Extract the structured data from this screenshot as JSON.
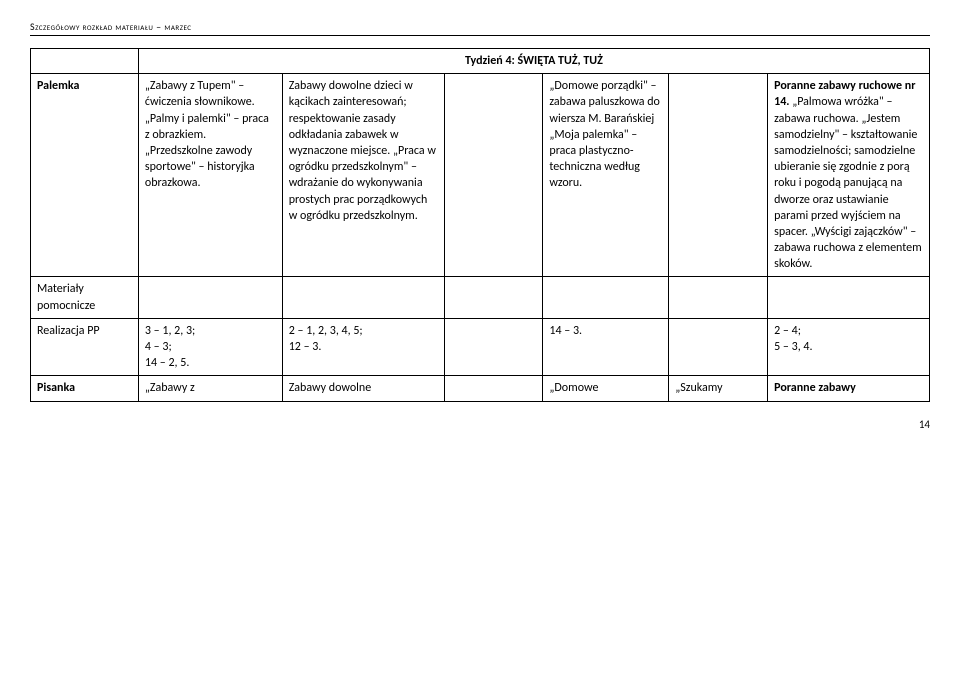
{
  "header": "Szczegółowy rozkład materiału – marzec",
  "week_title": "Tydzień 4: ŚWIĘTA TUŻ, TUŻ",
  "row1": {
    "c0": "Palemka",
    "c1": "„Zabawy z Tupem\" – ćwiczenia słownikowe. „Palmy i palemki\" – praca z obrazkiem. „Przedszkolne zawody sportowe\" – historyjka obrazkowa.",
    "c2": "Zabawy dowolne dzieci w kącikach zainteresowań; respektowanie zasady odkładania zabawek w wyznaczone miejsce. „Praca w ogródku przedszkolnym\" – wdrażanie do wykonywania prostych prac porządkowych w ogródku przedszkolnym.",
    "c3": "",
    "c4": "„Domowe porządki\" – zabawa paluszkowa do wiersza M. Barańskiej „Moja palemka\" – praca plastyczno-techniczna według wzoru.",
    "c5": "",
    "c6": "Poranne zabawy ruchowe nr 14. „Palmowa wróżka\" – zabawa ruchowa. „Jestem samodzielny\" – kształtowanie samodzielności; samodzielne ubieranie się zgodnie z porą roku i pogodą panującą na dworze oraz ustawianie parami przed wyjściem na spacer. „Wyścigi zajączków\" – zabawa ruchowa z elementem skoków."
  },
  "row2": {
    "c0": "Materiały pomocnicze",
    "c1": "",
    "c2": "",
    "c3": "",
    "c4": "",
    "c5": "",
    "c6": ""
  },
  "row3": {
    "c0": "Realizacja PP",
    "c1": "3 – 1, 2, 3;\n4 – 3;\n14 – 2, 5.",
    "c2": "2 – 1, 2, 3, 4, 5;\n12 – 3.",
    "c3": "",
    "c4": "14 – 3.",
    "c5": "",
    "c6": "2 – 4;\n5 – 3, 4."
  },
  "row4": {
    "c0": "Pisanka",
    "c1": "„Zabawy z",
    "c2": "Zabawy dowolne",
    "c3": "",
    "c4": "„Domowe",
    "c5": "„Szukamy",
    "c6": "Poranne zabawy"
  },
  "page_number": "14",
  "colors": {
    "text": "#000000",
    "background": "#ffffff",
    "border": "#000000"
  }
}
